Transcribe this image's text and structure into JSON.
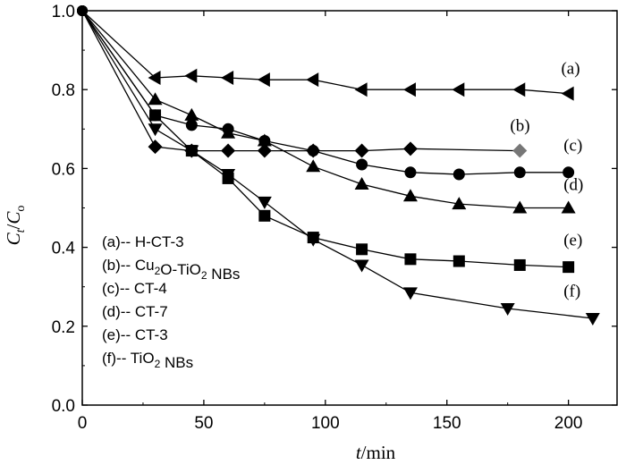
{
  "chart_data": {
    "type": "line",
    "title": "",
    "xlabel": {
      "italic": "t",
      "rest": "/min"
    },
    "ylabel": {
      "c": "C",
      "sub_t": "t",
      "slash": "/",
      "c0": "C",
      "sub_0": "o"
    },
    "xlim": [
      0,
      220
    ],
    "ylim": [
      0.0,
      1.0
    ],
    "x_ticks": [
      "0",
      "50",
      "100",
      "150",
      "200"
    ],
    "y_ticks": [
      "0.0",
      "0.2",
      "0.4",
      "0.6",
      "0.8",
      "1.0"
    ],
    "grid": false,
    "legend_position": "lower-left",
    "series": [
      {
        "id": "a",
        "label": "(a)",
        "marker": "triangle-left",
        "color": "#000000",
        "x": [
          0,
          30,
          45,
          60,
          75,
          95,
          115,
          135,
          155,
          180,
          200
        ],
        "y": [
          1.0,
          0.83,
          0.835,
          0.83,
          0.825,
          0.825,
          0.8,
          0.8,
          0.8,
          0.8,
          0.79
        ]
      },
      {
        "id": "b",
        "label": "(b)",
        "marker": "diamond",
        "color": "#000000",
        "last_color": "#777777",
        "x": [
          0,
          30,
          45,
          60,
          75,
          95,
          115,
          135,
          180
        ],
        "y": [
          1.0,
          0.655,
          0.645,
          0.645,
          0.645,
          0.645,
          0.645,
          0.65,
          0.645
        ]
      },
      {
        "id": "c",
        "label": "(c)",
        "marker": "circle",
        "color": "#000000",
        "x": [
          0,
          30,
          45,
          60,
          75,
          95,
          115,
          135,
          155,
          180,
          200
        ],
        "y": [
          1.0,
          0.735,
          0.71,
          0.7,
          0.67,
          0.645,
          0.61,
          0.59,
          0.585,
          0.59,
          0.59
        ]
      },
      {
        "id": "d",
        "label": "(d)",
        "marker": "triangle-up",
        "color": "#000000",
        "x": [
          0,
          30,
          45,
          60,
          75,
          95,
          115,
          135,
          155,
          180,
          200
        ],
        "y": [
          1.0,
          0.775,
          0.735,
          0.69,
          0.67,
          0.605,
          0.56,
          0.53,
          0.51,
          0.5,
          0.5
        ]
      },
      {
        "id": "e",
        "label": "(e)",
        "marker": "square",
        "color": "#000000",
        "x": [
          0,
          30,
          45,
          60,
          75,
          95,
          115,
          135,
          155,
          180,
          200
        ],
        "y": [
          1.0,
          0.735,
          0.645,
          0.575,
          0.48,
          0.425,
          0.395,
          0.37,
          0.365,
          0.355,
          0.35
        ]
      },
      {
        "id": "f",
        "label": "(f)",
        "marker": "triangle-down",
        "color": "#000000",
        "line_color": "#555555",
        "x": [
          0,
          30,
          45,
          60,
          75,
          95,
          115,
          135,
          175,
          210
        ],
        "y": [
          1.0,
          0.7,
          0.645,
          0.585,
          0.515,
          0.42,
          0.355,
          0.285,
          0.245,
          0.22
        ]
      }
    ],
    "annotations": [
      {
        "text": "(a)",
        "x": 197,
        "y": 0.84
      },
      {
        "text": "(b)",
        "x": 176,
        "y": 0.695
      },
      {
        "text": "(c)",
        "x": 198,
        "y": 0.645
      },
      {
        "text": "(d)",
        "x": 198,
        "y": 0.545
      },
      {
        "text": "(e)",
        "x": 198,
        "y": 0.405
      },
      {
        "text": "(f)",
        "x": 198,
        "y": 0.275
      }
    ],
    "legend": [
      {
        "prefix": "(a)-- ",
        "text": "H-CT-3"
      },
      {
        "prefix": "(b)-- ",
        "text": "Cu",
        "sub": "2",
        "text2": "O-TiO",
        "sub2": "2",
        "text3": " NBs"
      },
      {
        "prefix": "(c)-- ",
        "text": "CT-4"
      },
      {
        "prefix": "(d)-- ",
        "text": "CT-7"
      },
      {
        "prefix": "(e)-- ",
        "text": "CT-3"
      },
      {
        "prefix": "(f)-- ",
        "text": "TiO",
        "sub": "2",
        "text2": " NBs"
      }
    ]
  }
}
